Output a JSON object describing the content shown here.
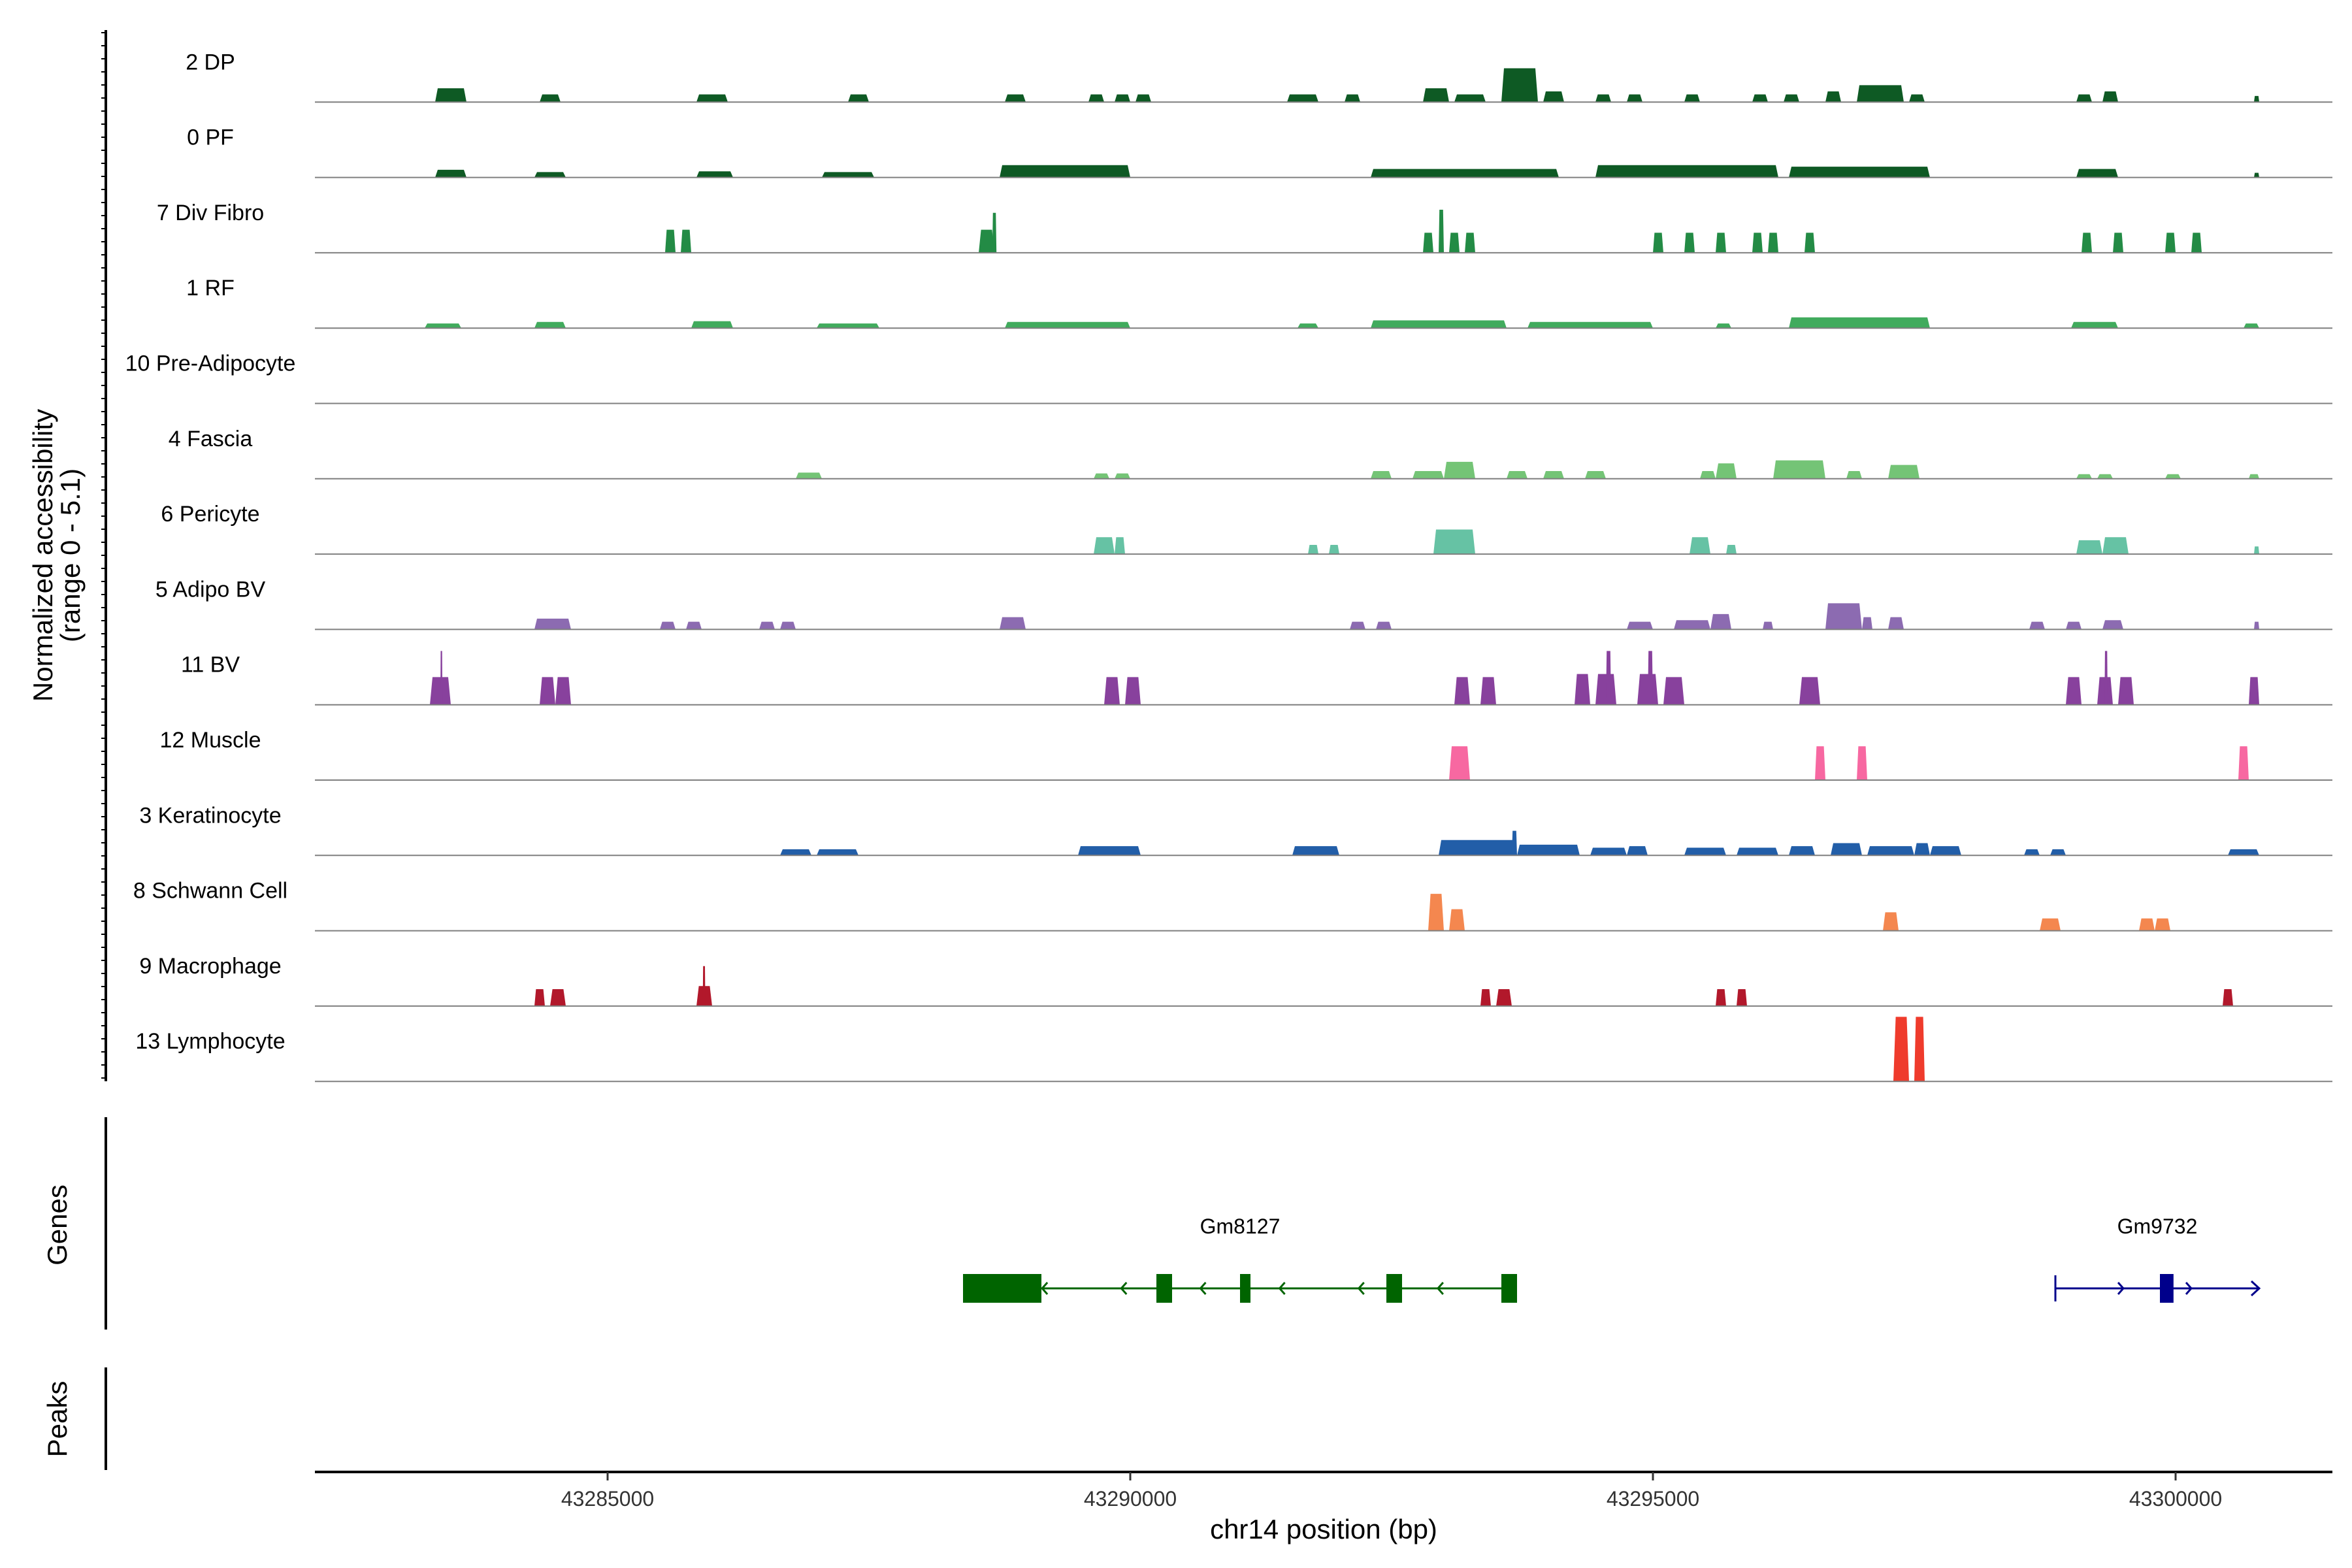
{
  "chart_data": {
    "type": "area",
    "title": "",
    "ylabel_line1": "Normalized accessibility",
    "ylabel_line2": "(range 0 - 5.1)",
    "xlabel": "chr14 position (bp)",
    "xlim": [
      43282200,
      43301500
    ],
    "ylim": [
      0,
      5.1
    ],
    "x_ticks": [
      43285000,
      43290000,
      43295000,
      43300000
    ],
    "x_tick_labels": [
      "43285000",
      "43290000",
      "43295000",
      "43300000"
    ],
    "genes_label": "Genes",
    "peaks_label": "Peaks",
    "tracks": [
      {
        "name": "2 DP",
        "color": "#0e5a24",
        "peaks": [
          [
            43283350,
            43283650,
            0.9
          ],
          [
            43284350,
            43284550,
            0.5
          ],
          [
            43285850,
            43286150,
            0.5
          ],
          [
            43287300,
            43287500,
            0.5
          ],
          [
            43288800,
            43289000,
            0.5
          ],
          [
            43289600,
            43289750,
            0.5
          ],
          [
            43289850,
            43290000,
            0.5
          ],
          [
            43290050,
            43290200,
            0.5
          ],
          [
            43291500,
            43291800,
            0.5
          ],
          [
            43292050,
            43292200,
            0.5
          ],
          [
            43292800,
            43293050,
            0.9
          ],
          [
            43293100,
            43293400,
            0.5
          ],
          [
            43293550,
            43293900,
            2.2
          ],
          [
            43293950,
            43294150,
            0.7
          ],
          [
            43294450,
            43294600,
            0.5
          ],
          [
            43294750,
            43294900,
            0.5
          ],
          [
            43295300,
            43295450,
            0.5
          ],
          [
            43295950,
            43296100,
            0.5
          ],
          [
            43296250,
            43296400,
            0.5
          ],
          [
            43296650,
            43296800,
            0.7
          ],
          [
            43296950,
            43297400,
            1.1
          ],
          [
            43297450,
            43297600,
            0.5
          ],
          [
            43299050,
            43299200,
            0.5
          ],
          [
            43299300,
            43299450,
            0.7
          ],
          [
            43300750,
            43300800,
            0.4
          ]
        ]
      },
      {
        "name": "0 PF",
        "color": "#0e5a24",
        "peaks": [
          [
            43283350,
            43283650,
            0.5
          ],
          [
            43284300,
            43284600,
            0.35
          ],
          [
            43285850,
            43286200,
            0.4
          ],
          [
            43287050,
            43287550,
            0.35
          ],
          [
            43288750,
            43290000,
            0.8
          ],
          [
            43292300,
            43294100,
            0.55
          ],
          [
            43294450,
            43296200,
            0.8
          ],
          [
            43296300,
            43297650,
            0.7
          ],
          [
            43299050,
            43299450,
            0.55
          ],
          [
            43300750,
            43300800,
            0.3
          ]
        ]
      },
      {
        "name": "7 Div Fibro",
        "color": "#238b45",
        "peaks": [
          [
            43285550,
            43285650,
            1.5
          ],
          [
            43285700,
            43285800,
            1.5
          ],
          [
            43288550,
            43288700,
            1.5
          ],
          [
            43288680,
            43288720,
            2.6
          ],
          [
            43292800,
            43292900,
            1.3
          ],
          [
            43292950,
            43293000,
            2.8
          ],
          [
            43293050,
            43293150,
            1.3
          ],
          [
            43293200,
            43293300,
            1.3
          ],
          [
            43295000,
            43295100,
            1.3
          ],
          [
            43295300,
            43295400,
            1.3
          ],
          [
            43295600,
            43295700,
            1.3
          ],
          [
            43295950,
            43296050,
            1.3
          ],
          [
            43296100,
            43296200,
            1.3
          ],
          [
            43296450,
            43296550,
            1.3
          ],
          [
            43299100,
            43299200,
            1.3
          ],
          [
            43299400,
            43299500,
            1.3
          ],
          [
            43299900,
            43300000,
            1.3
          ],
          [
            43300150,
            43300250,
            1.3
          ]
        ]
      },
      {
        "name": "1 RF",
        "color": "#41ab5d",
        "peaks": [
          [
            43283250,
            43283600,
            0.3
          ],
          [
            43284300,
            43284600,
            0.4
          ],
          [
            43285800,
            43286200,
            0.45
          ],
          [
            43287000,
            43287600,
            0.3
          ],
          [
            43288800,
            43290000,
            0.4
          ],
          [
            43291600,
            43291800,
            0.3
          ],
          [
            43292300,
            43293600,
            0.5
          ],
          [
            43293800,
            43295000,
            0.4
          ],
          [
            43295600,
            43295750,
            0.3
          ],
          [
            43296300,
            43297650,
            0.7
          ],
          [
            43299000,
            43299450,
            0.4
          ],
          [
            43300650,
            43300800,
            0.3
          ]
        ]
      },
      {
        "name": "10 Pre-Adipocyte",
        "color": "#7fbf7b",
        "peaks": []
      },
      {
        "name": "4 Fascia",
        "color": "#74c476",
        "peaks": [
          [
            43286800,
            43287050,
            0.4
          ],
          [
            43289650,
            43289800,
            0.35
          ],
          [
            43289850,
            43290000,
            0.35
          ],
          [
            43292300,
            43292500,
            0.5
          ],
          [
            43292700,
            43293000,
            0.5
          ],
          [
            43293000,
            43293300,
            1.1
          ],
          [
            43293600,
            43293800,
            0.5
          ],
          [
            43293950,
            43294150,
            0.5
          ],
          [
            43294350,
            43294550,
            0.5
          ],
          [
            43295450,
            43295600,
            0.5
          ],
          [
            43295600,
            43295800,
            1.0
          ],
          [
            43296150,
            43296650,
            1.2
          ],
          [
            43296850,
            43297000,
            0.5
          ],
          [
            43297250,
            43297550,
            0.9
          ],
          [
            43299050,
            43299200,
            0.3
          ],
          [
            43299250,
            43299400,
            0.3
          ],
          [
            43299900,
            43300050,
            0.3
          ],
          [
            43300700,
            43300800,
            0.3
          ]
        ]
      },
      {
        "name": "6 Pericyte",
        "color": "#66c2a4",
        "peaks": [
          [
            43289650,
            43289850,
            1.1
          ],
          [
            43289850,
            43289950,
            1.1
          ],
          [
            43291700,
            43291800,
            0.6
          ],
          [
            43291900,
            43292000,
            0.6
          ],
          [
            43292900,
            43293300,
            1.6
          ],
          [
            43295350,
            43295550,
            1.1
          ],
          [
            43295700,
            43295800,
            0.6
          ],
          [
            43299050,
            43299300,
            0.9
          ],
          [
            43299300,
            43299550,
            1.1
          ],
          [
            43300750,
            43300800,
            0.5
          ]
        ]
      },
      {
        "name": "5 Adipo BV",
        "color": "#8c6bb1",
        "peaks": [
          [
            43284300,
            43284650,
            0.7
          ],
          [
            43285500,
            43285650,
            0.5
          ],
          [
            43285750,
            43285900,
            0.5
          ],
          [
            43286450,
            43286600,
            0.5
          ],
          [
            43286650,
            43286800,
            0.5
          ],
          [
            43288750,
            43289000,
            0.8
          ],
          [
            43292100,
            43292250,
            0.5
          ],
          [
            43292350,
            43292500,
            0.5
          ],
          [
            43294750,
            43295000,
            0.5
          ],
          [
            43295200,
            43295550,
            0.6
          ],
          [
            43295550,
            43295750,
            1.0
          ],
          [
            43296050,
            43296150,
            0.5
          ],
          [
            43296650,
            43297000,
            1.7
          ],
          [
            43297000,
            43297100,
            0.8
          ],
          [
            43297250,
            43297400,
            0.8
          ],
          [
            43298600,
            43298750,
            0.5
          ],
          [
            43298950,
            43299100,
            0.5
          ],
          [
            43299300,
            43299500,
            0.6
          ],
          [
            43300750,
            43300800,
            0.5
          ]
        ]
      },
      {
        "name": "11 BV",
        "color": "#88419d",
        "peaks": [
          [
            43283300,
            43283500,
            1.8
          ],
          [
            43283400,
            43283420,
            3.5
          ],
          [
            43284350,
            43284500,
            1.8
          ],
          [
            43284500,
            43284650,
            1.8
          ],
          [
            43289750,
            43289900,
            1.8
          ],
          [
            43289950,
            43290100,
            1.8
          ],
          [
            43293100,
            43293250,
            1.8
          ],
          [
            43293350,
            43293500,
            1.8
          ],
          [
            43294250,
            43294400,
            2.0
          ],
          [
            43294450,
            43294650,
            2.0
          ],
          [
            43294550,
            43294600,
            3.5
          ],
          [
            43294850,
            43295050,
            2.0
          ],
          [
            43294950,
            43295000,
            3.5
          ],
          [
            43295100,
            43295300,
            1.8
          ],
          [
            43296400,
            43296600,
            1.8
          ],
          [
            43298950,
            43299100,
            1.8
          ],
          [
            43299250,
            43299400,
            1.8
          ],
          [
            43299320,
            43299350,
            3.5
          ],
          [
            43299450,
            43299600,
            1.8
          ],
          [
            43300700,
            43300800,
            1.8
          ]
        ]
      },
      {
        "name": "12 Muscle",
        "color": "#f768a1",
        "peaks": [
          [
            43293050,
            43293250,
            2.2
          ],
          [
            43296550,
            43296650,
            2.2
          ],
          [
            43296950,
            43297050,
            2.2
          ],
          [
            43300600,
            43300700,
            2.2
          ]
        ]
      },
      {
        "name": "3 Keratinocyte",
        "color": "#225ea8",
        "peaks": [
          [
            43286650,
            43286950,
            0.4
          ],
          [
            43287000,
            43287400,
            0.4
          ],
          [
            43289500,
            43290100,
            0.6
          ],
          [
            43291550,
            43292000,
            0.6
          ],
          [
            43292950,
            43293700,
            1.0
          ],
          [
            43293650,
            43293700,
            1.6
          ],
          [
            43293700,
            43294300,
            0.7
          ],
          [
            43294400,
            43294750,
            0.5
          ],
          [
            43294750,
            43294950,
            0.6
          ],
          [
            43295300,
            43295700,
            0.5
          ],
          [
            43295800,
            43296200,
            0.5
          ],
          [
            43296300,
            43296550,
            0.6
          ],
          [
            43296700,
            43297000,
            0.8
          ],
          [
            43297050,
            43297500,
            0.6
          ],
          [
            43297500,
            43297650,
            0.8
          ],
          [
            43297650,
            43297950,
            0.6
          ],
          [
            43298550,
            43298700,
            0.4
          ],
          [
            43298800,
            43298950,
            0.4
          ],
          [
            43300500,
            43300800,
            0.4
          ]
        ]
      },
      {
        "name": "8 Schwann Cell",
        "color": "#f4874f",
        "peaks": [
          [
            43292850,
            43293000,
            2.4
          ],
          [
            43293050,
            43293200,
            1.4
          ],
          [
            43297200,
            43297350,
            1.2
          ],
          [
            43298700,
            43298900,
            0.8
          ],
          [
            43299650,
            43299800,
            0.8
          ],
          [
            43299800,
            43299950,
            0.8
          ]
        ]
      },
      {
        "name": "9 Macrophage",
        "color": "#b2182b",
        "peaks": [
          [
            43284300,
            43284400,
            1.1
          ],
          [
            43284450,
            43284600,
            1.1
          ],
          [
            43285850,
            43286000,
            1.3
          ],
          [
            43285910,
            43285935,
            2.6
          ],
          [
            43293350,
            43293450,
            1.1
          ],
          [
            43293500,
            43293650,
            1.1
          ],
          [
            43295600,
            43295700,
            1.1
          ],
          [
            43295800,
            43295900,
            1.1
          ],
          [
            43300450,
            43300550,
            1.1
          ]
        ]
      },
      {
        "name": "13 Lymphocyte",
        "color": "#ef3b2c",
        "peaks": [
          [
            43297300,
            43297450,
            4.2
          ],
          [
            43297500,
            43297600,
            4.2
          ]
        ]
      }
    ],
    "genes": [
      {
        "name": "Gm8127",
        "strand": "-",
        "color": "#006400",
        "start": 43288400,
        "end": 43293700,
        "exons": [
          [
            43288400,
            43289150
          ],
          [
            43290250,
            43290400
          ],
          [
            43291050,
            43291150
          ],
          [
            43292450,
            43292600
          ],
          [
            43293550,
            43293700
          ]
        ]
      },
      {
        "name": "Gm9732",
        "strand": "+",
        "color": "#00008b",
        "start": 43298850,
        "end": 43300800,
        "exons": [
          [
            43299850,
            43299980
          ]
        ]
      }
    ]
  }
}
